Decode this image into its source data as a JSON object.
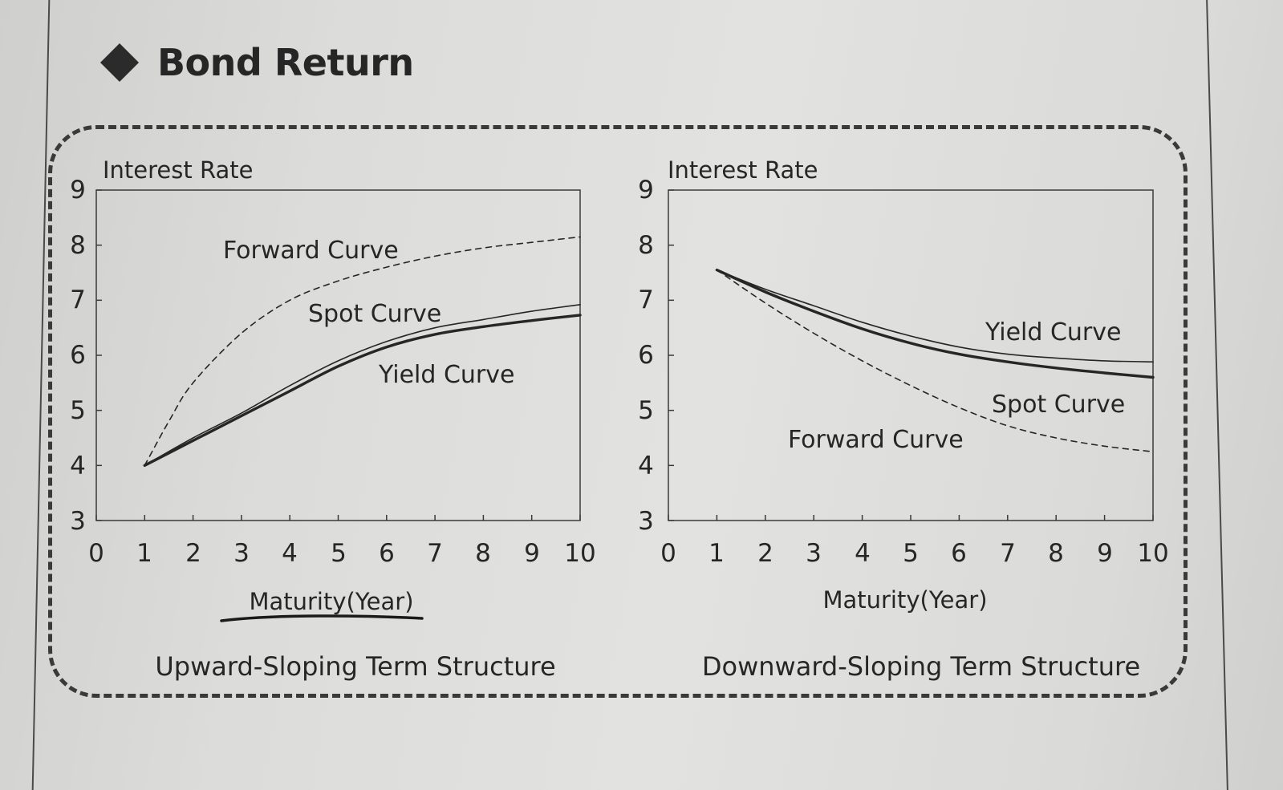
{
  "header": {
    "title": "Bond Return",
    "icon": "diamond-icon"
  },
  "chart_data": [
    {
      "type": "line",
      "caption": "Upward-Sloping Term Structure",
      "ylabel": "Interest Rate",
      "xlabel": "Maturity(Year)",
      "xlim": [
        0,
        10
      ],
      "ylim": [
        3,
        9
      ],
      "xticks": [
        0,
        1,
        2,
        3,
        4,
        5,
        6,
        7,
        8,
        9,
        10
      ],
      "yticks": [
        3,
        4,
        5,
        6,
        7,
        8,
        9
      ],
      "grid": false,
      "series": [
        {
          "name": "Forward Curve",
          "style": "dashed",
          "x": [
            1,
            1.5,
            2,
            3,
            4,
            5,
            6,
            7,
            8,
            9,
            10
          ],
          "y": [
            4.0,
            4.8,
            5.5,
            6.4,
            7.0,
            7.35,
            7.6,
            7.8,
            7.95,
            8.05,
            8.15
          ]
        },
        {
          "name": "Spot Curve",
          "style": "thin",
          "x": [
            1,
            2,
            3,
            4,
            5,
            6,
            7,
            8,
            9,
            10
          ],
          "y": [
            4.0,
            4.5,
            4.95,
            5.45,
            5.9,
            6.25,
            6.5,
            6.65,
            6.8,
            6.92
          ]
        },
        {
          "name": "Yield Curve",
          "style": "thick",
          "x": [
            1,
            2,
            3,
            4,
            5,
            6,
            7,
            8,
            9,
            10
          ],
          "y": [
            4.0,
            4.45,
            4.9,
            5.35,
            5.8,
            6.15,
            6.38,
            6.52,
            6.63,
            6.73
          ]
        }
      ]
    },
    {
      "type": "line",
      "caption": "Downward-Sloping Term Structure",
      "ylabel": "Interest Rate",
      "xlabel": "Maturity(Year)",
      "xlim": [
        0,
        10
      ],
      "ylim": [
        3,
        9
      ],
      "xticks": [
        0,
        1,
        2,
        3,
        4,
        5,
        6,
        7,
        8,
        9,
        10
      ],
      "yticks": [
        3,
        4,
        5,
        6,
        7,
        8,
        9
      ],
      "grid": false,
      "series": [
        {
          "name": "Yield Curve",
          "style": "thin",
          "x": [
            1,
            2,
            3,
            4,
            5,
            6,
            7,
            8,
            9,
            10
          ],
          "y": [
            7.55,
            7.2,
            6.9,
            6.6,
            6.35,
            6.15,
            6.02,
            5.95,
            5.9,
            5.88
          ]
        },
        {
          "name": "Spot Curve",
          "style": "thick",
          "x": [
            1,
            2,
            3,
            4,
            5,
            6,
            7,
            8,
            9,
            10
          ],
          "y": [
            7.55,
            7.15,
            6.8,
            6.48,
            6.22,
            6.02,
            5.88,
            5.77,
            5.68,
            5.6
          ]
        },
        {
          "name": "Forward Curve",
          "style": "dashed",
          "x": [
            1,
            2,
            3,
            4,
            5,
            6,
            7,
            8,
            9,
            10
          ],
          "y": [
            7.55,
            6.95,
            6.4,
            5.9,
            5.45,
            5.05,
            4.72,
            4.5,
            4.35,
            4.25
          ]
        }
      ]
    }
  ]
}
